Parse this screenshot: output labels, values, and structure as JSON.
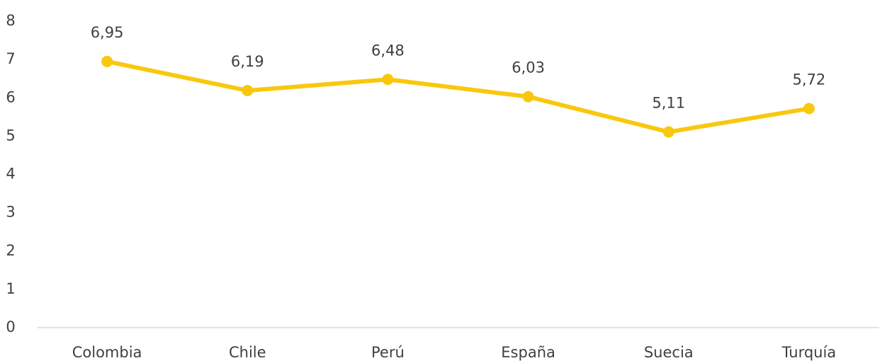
{
  "chart_data": {
    "type": "line",
    "categories": [
      "Colombia",
      "Chile",
      "Perú",
      "España",
      "Suecia",
      "Turquía"
    ],
    "series": [
      {
        "color": "#f9c80e",
        "values": [
          6.95,
          6.19,
          6.48,
          6.03,
          5.11,
          5.72
        ],
        "value_labels": [
          "6,95",
          "6,19",
          "6,48",
          "6,03",
          "5,11",
          "5,72"
        ]
      }
    ],
    "ylim": [
      0,
      8
    ],
    "yticks": [
      0,
      1,
      2,
      3,
      4,
      5,
      6,
      7,
      8
    ],
    "grid": false
  }
}
